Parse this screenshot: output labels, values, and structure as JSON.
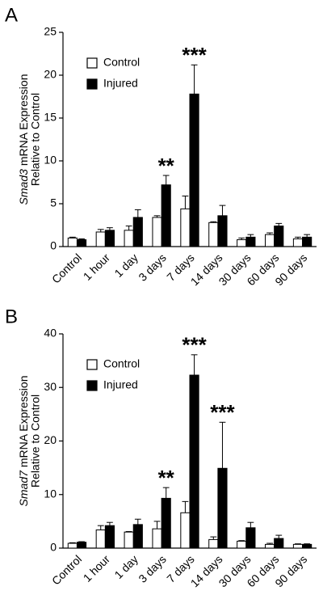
{
  "chart_data": [
    {
      "type": "bar",
      "label": "A",
      "ylabel_gene": "Smad3",
      "ylabel": "mRNA Expression",
      "ylabel2": "Relative to Control",
      "categories": [
        "Control",
        "1 hour",
        "1 day",
        "3 days",
        "7 days",
        "14 days",
        "30 days",
        "60 days",
        "90 days"
      ],
      "series": [
        {
          "name": "Control",
          "color": "#ffffff",
          "values": [
            1.0,
            1.7,
            1.9,
            3.4,
            4.4,
            2.8,
            0.8,
            1.4,
            0.9
          ],
          "errors": [
            0.1,
            0.3,
            0.5,
            0.2,
            1.5,
            0.1,
            0.2,
            0.2,
            0.2
          ]
        },
        {
          "name": "Injured",
          "color": "#000000",
          "values": [
            0.8,
            1.9,
            3.4,
            7.2,
            17.8,
            3.6,
            1.1,
            2.4,
            1.1
          ],
          "errors": [
            0.1,
            0.3,
            0.9,
            1.1,
            3.4,
            1.2,
            0.3,
            0.3,
            0.3
          ]
        }
      ],
      "annotations": [
        {
          "text": "**",
          "category": "3 days"
        },
        {
          "text": "***",
          "category": "7 days"
        }
      ],
      "ylim": [
        0,
        25
      ],
      "yticks": [
        0,
        5,
        10,
        15,
        20,
        25
      ],
      "legend": "upper left"
    },
    {
      "type": "bar",
      "label": "B",
      "ylabel_gene": "Smad7",
      "ylabel": "mRNA Expression",
      "ylabel2": "Relative to Control",
      "categories": [
        "Control",
        "1 hour",
        "1 day",
        "3 days",
        "7 days",
        "14 days",
        "30 days",
        "60 days",
        "90 days"
      ],
      "series": [
        {
          "name": "Control",
          "color": "#ffffff",
          "values": [
            0.9,
            3.4,
            3.0,
            3.6,
            6.6,
            1.6,
            1.3,
            0.7,
            0.7
          ],
          "errors": [
            0.1,
            0.8,
            0.1,
            1.4,
            2.1,
            0.5,
            0.1,
            0.2,
            0.1
          ]
        },
        {
          "name": "Injured",
          "color": "#000000",
          "values": [
            1.1,
            4.2,
            4.4,
            9.3,
            32.3,
            14.9,
            3.8,
            1.8,
            0.7
          ],
          "errors": [
            0.1,
            0.6,
            1.0,
            2.0,
            3.8,
            8.6,
            1.0,
            0.6,
            0.1
          ]
        }
      ],
      "annotations": [
        {
          "text": "**",
          "category": "3 days"
        },
        {
          "text": "***",
          "category": "7 days"
        },
        {
          "text": "***",
          "category": "14 days"
        }
      ],
      "ylim": [
        0,
        40
      ],
      "yticks": [
        0,
        10,
        20,
        30,
        40
      ],
      "legend": "upper left"
    }
  ]
}
